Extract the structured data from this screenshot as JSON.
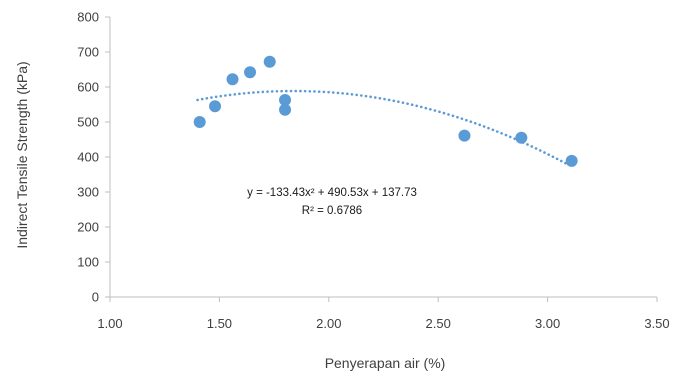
{
  "chart_data": {
    "type": "scatter",
    "title": "",
    "xlabel": "Penyerapan air (%)",
    "ylabel": "Indirect Tensile Strength (kPa)",
    "xlim": [
      1.0,
      3.5
    ],
    "ylim": [
      0,
      800
    ],
    "x_ticks": [
      "1.00",
      "1.50",
      "2.00",
      "2.50",
      "3.00",
      "3.50"
    ],
    "y_ticks": [
      "0",
      "100",
      "200",
      "300",
      "400",
      "500",
      "600",
      "700",
      "800"
    ],
    "grid": false,
    "legend": "none",
    "series": [
      {
        "color": "#5b9bd5",
        "points": [
          {
            "x": 1.41,
            "y": 500
          },
          {
            "x": 1.48,
            "y": 545
          },
          {
            "x": 1.56,
            "y": 622
          },
          {
            "x": 1.64,
            "y": 642
          },
          {
            "x": 1.73,
            "y": 672
          },
          {
            "x": 1.8,
            "y": 563
          },
          {
            "x": 1.8,
            "y": 535
          },
          {
            "x": 2.62,
            "y": 461
          },
          {
            "x": 2.88,
            "y": 455
          },
          {
            "x": 3.11,
            "y": 389
          }
        ]
      }
    ],
    "trendline": {
      "type": "polynomial",
      "coefficients": [
        -133.43,
        490.53,
        137.73
      ],
      "x_range": [
        1.4,
        3.1
      ],
      "color": "#5b9bd5",
      "style": "dotted",
      "equation_label": "y = -133.43x² + 490.53x + 137.73",
      "r2_label": "R² = 0.6786"
    }
  }
}
